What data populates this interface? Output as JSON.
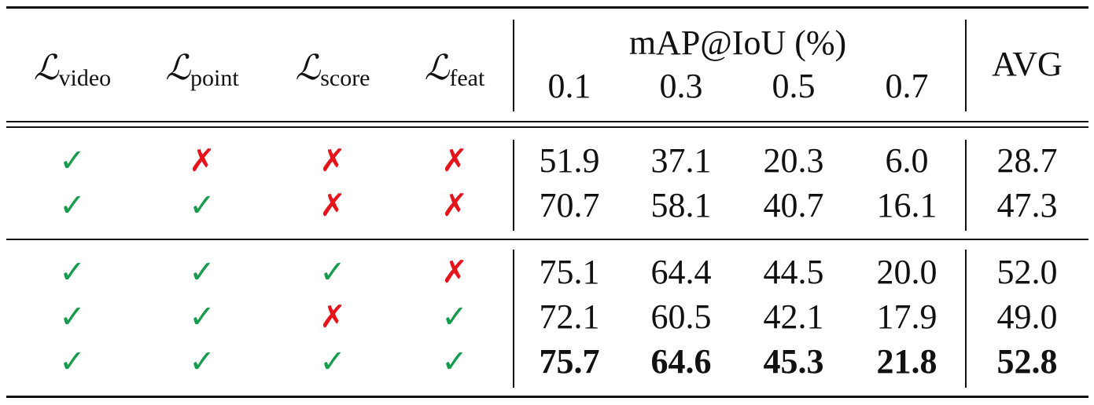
{
  "table": {
    "loss_columns": [
      {
        "symbol": "ℒ",
        "sub": "video"
      },
      {
        "symbol": "ℒ",
        "sub": "point"
      },
      {
        "symbol": "ℒ",
        "sub": "score"
      },
      {
        "symbol": "ℒ",
        "sub": "feat"
      }
    ],
    "metric_group": "mAP@IoU (%)",
    "thresholds": [
      "0.1",
      "0.3",
      "0.5",
      "0.7"
    ],
    "avg_header": "AVG",
    "check_color": "#169c4c",
    "cross_color": "#e5141b",
    "groups": [
      [
        {
          "marks": [
            "✓",
            "✗",
            "✗",
            "✗"
          ],
          "values": [
            "51.9",
            "37.1",
            "20.3",
            "6.0",
            "28.7"
          ],
          "bold": false
        },
        {
          "marks": [
            "✓",
            "✓",
            "✗",
            "✗"
          ],
          "values": [
            "70.7",
            "58.1",
            "40.7",
            "16.1",
            "47.3"
          ],
          "bold": false
        }
      ],
      [
        {
          "marks": [
            "✓",
            "✓",
            "✓",
            "✗"
          ],
          "values": [
            "75.1",
            "64.4",
            "44.5",
            "20.0",
            "52.0"
          ],
          "bold": false
        },
        {
          "marks": [
            "✓",
            "✓",
            "✗",
            "✓"
          ],
          "values": [
            "72.1",
            "60.5",
            "42.1",
            "17.9",
            "49.0"
          ],
          "bold": false
        },
        {
          "marks": [
            "✓",
            "✓",
            "✓",
            "✓"
          ],
          "values": [
            "75.7",
            "64.6",
            "45.3",
            "21.8",
            "52.8"
          ],
          "bold": true
        }
      ]
    ]
  }
}
